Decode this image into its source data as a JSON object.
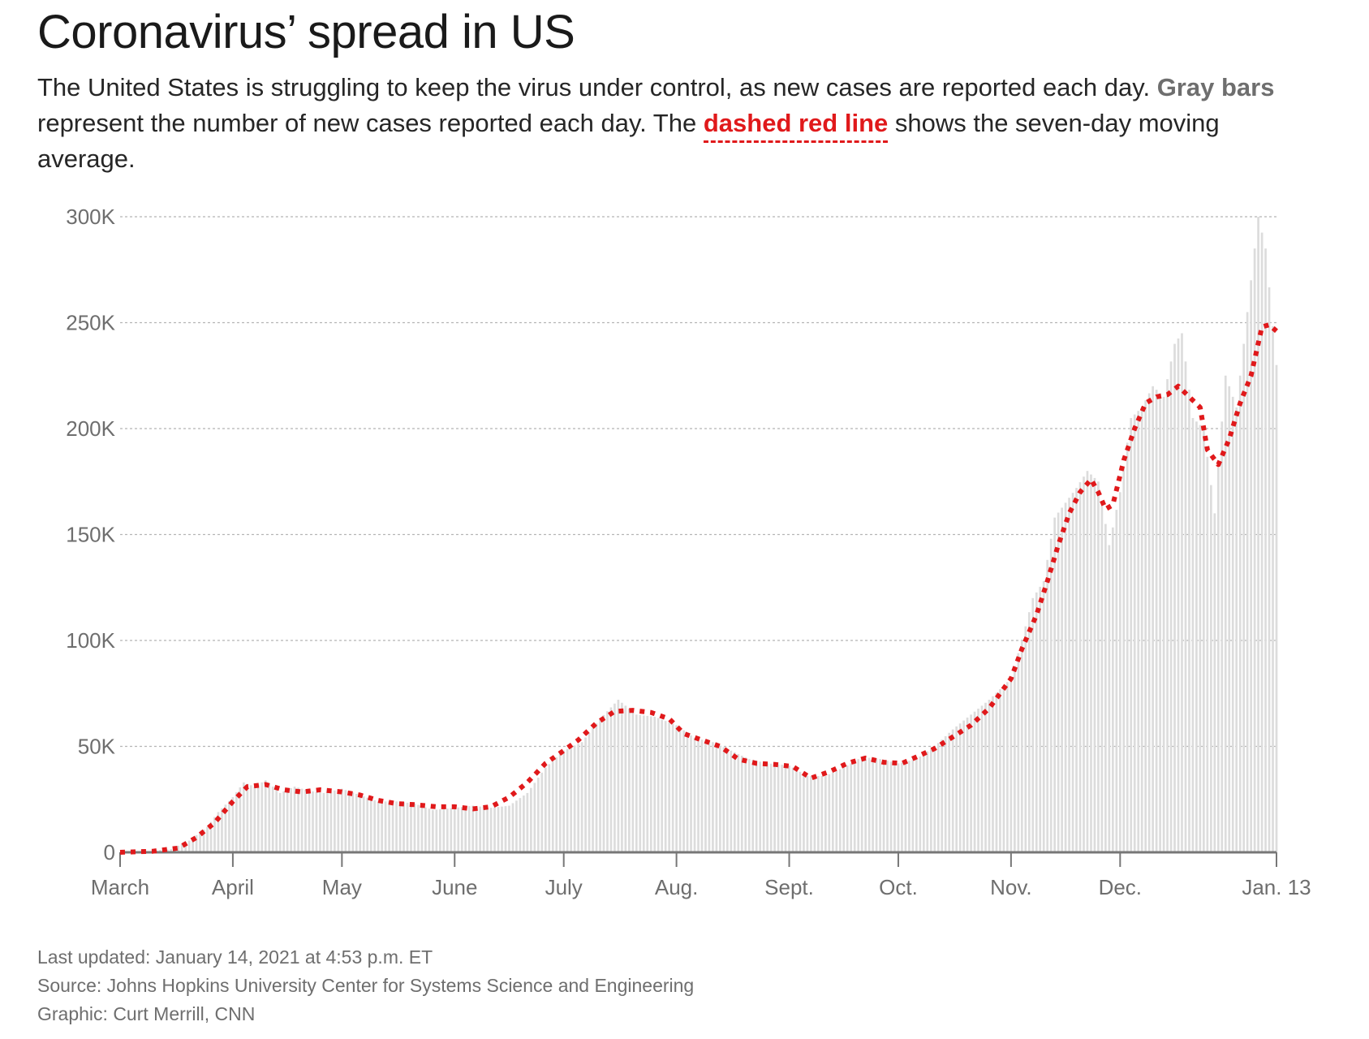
{
  "header": {
    "title": "Coronavirus’ spread in US",
    "desc_part1": "The United States is struggling to keep the virus under control, as new cases are reported each day. ",
    "desc_gray": "Gray bars",
    "desc_part2": " represent the number of new cases reported each day. The ",
    "desc_red": "dashed red line",
    "desc_part3": " shows the seven-day moving average."
  },
  "footer": {
    "updated": "Last updated: January 14, 2021 at 4:53 p.m. ET",
    "source": "Source: Johns Hopkins University Center for Systems Science and Engineering",
    "graphic": "Graphic: Curt Merrill, CNN"
  },
  "colors": {
    "bars": "#dcdcdc",
    "average_line": "#e0191b",
    "grid": "#b5b5b5",
    "axis": "#777777"
  },
  "chart_data": {
    "type": "bar",
    "title": "",
    "xlabel": "",
    "ylabel": "",
    "ylim": [
      0,
      300000
    ],
    "grid": true,
    "y_ticks": [
      {
        "value": 0,
        "label": "0"
      },
      {
        "value": 50000,
        "label": "50K"
      },
      {
        "value": 100000,
        "label": "100K"
      },
      {
        "value": 150000,
        "label": "150K"
      },
      {
        "value": 200000,
        "label": "200K"
      },
      {
        "value": 250000,
        "label": "250K"
      },
      {
        "value": 300000,
        "label": "300K"
      }
    ],
    "x_ticks": [
      {
        "date": "2020-03-01",
        "label": "March"
      },
      {
        "date": "2020-04-01",
        "label": "April"
      },
      {
        "date": "2020-05-01",
        "label": "May"
      },
      {
        "date": "2020-06-01",
        "label": "June"
      },
      {
        "date": "2020-07-01",
        "label": "July"
      },
      {
        "date": "2020-08-01",
        "label": "Aug."
      },
      {
        "date": "2020-09-01",
        "label": "Sept."
      },
      {
        "date": "2020-10-01",
        "label": "Oct."
      },
      {
        "date": "2020-11-01",
        "label": "Nov."
      },
      {
        "date": "2020-12-01",
        "label": "Dec."
      },
      {
        "date": "2021-01-13",
        "label": "Jan. 13"
      }
    ],
    "series": [
      {
        "kind": "bars",
        "points": [
          [
            "2020-03-01",
            0
          ],
          [
            "2020-03-08",
            400
          ],
          [
            "2020-03-15",
            1500
          ],
          [
            "2020-03-20",
            5500
          ],
          [
            "2020-03-25",
            12000
          ],
          [
            "2020-03-28",
            19000
          ],
          [
            "2020-04-01",
            26000
          ],
          [
            "2020-04-04",
            33000
          ],
          [
            "2020-04-07",
            31000
          ],
          [
            "2020-04-10",
            34000
          ],
          [
            "2020-04-14",
            28000
          ],
          [
            "2020-04-18",
            31000
          ],
          [
            "2020-04-22",
            29000
          ],
          [
            "2020-04-26",
            28000
          ],
          [
            "2020-05-01",
            30000
          ],
          [
            "2020-05-06",
            27000
          ],
          [
            "2020-05-11",
            24000
          ],
          [
            "2020-05-16",
            24000
          ],
          [
            "2020-05-21",
            23000
          ],
          [
            "2020-05-26",
            20000
          ],
          [
            "2020-06-01",
            21000
          ],
          [
            "2020-06-06",
            22000
          ],
          [
            "2020-06-11",
            21000
          ],
          [
            "2020-06-16",
            22000
          ],
          [
            "2020-06-21",
            28000
          ],
          [
            "2020-06-26",
            40000
          ],
          [
            "2020-07-01",
            48000
          ],
          [
            "2020-07-06",
            52000
          ],
          [
            "2020-07-11",
            63000
          ],
          [
            "2020-07-16",
            72000
          ],
          [
            "2020-07-21",
            65000
          ],
          [
            "2020-07-26",
            64000
          ],
          [
            "2020-08-01",
            60000
          ],
          [
            "2020-08-06",
            54000
          ],
          [
            "2020-08-11",
            52000
          ],
          [
            "2020-08-16",
            48000
          ],
          [
            "2020-08-21",
            44000
          ],
          [
            "2020-08-26",
            42000
          ],
          [
            "2020-09-01",
            41000
          ],
          [
            "2020-09-06",
            36000
          ],
          [
            "2020-09-11",
            36000
          ],
          [
            "2020-09-16",
            40000
          ],
          [
            "2020-09-21",
            45000
          ],
          [
            "2020-09-26",
            44000
          ],
          [
            "2020-10-01",
            42000
          ],
          [
            "2020-10-06",
            44000
          ],
          [
            "2020-10-11",
            50000
          ],
          [
            "2020-10-16",
            58000
          ],
          [
            "2020-10-21",
            65000
          ],
          [
            "2020-10-26",
            72000
          ],
          [
            "2020-11-01",
            82000
          ],
          [
            "2020-11-04",
            100000
          ],
          [
            "2020-11-07",
            120000
          ],
          [
            "2020-11-10",
            128000
          ],
          [
            "2020-11-13",
            158000
          ],
          [
            "2020-11-16",
            165000
          ],
          [
            "2020-11-19",
            172000
          ],
          [
            "2020-11-22",
            180000
          ],
          [
            "2020-11-25",
            175000
          ],
          [
            "2020-11-28",
            145000
          ],
          [
            "2020-12-01",
            170000
          ],
          [
            "2020-12-04",
            205000
          ],
          [
            "2020-12-07",
            210000
          ],
          [
            "2020-12-10",
            220000
          ],
          [
            "2020-12-13",
            215000
          ],
          [
            "2020-12-16",
            240000
          ],
          [
            "2020-12-18",
            245000
          ],
          [
            "2020-12-21",
            205000
          ],
          [
            "2020-12-24",
            200000
          ],
          [
            "2020-12-27",
            160000
          ],
          [
            "2020-12-30",
            225000
          ],
          [
            "2021-01-02",
            210000
          ],
          [
            "2021-01-05",
            255000
          ],
          [
            "2021-01-08",
            300000
          ],
          [
            "2021-01-10",
            285000
          ],
          [
            "2021-01-13",
            230000
          ]
        ]
      },
      {
        "kind": "line",
        "points": [
          [
            "2020-03-01",
            0
          ],
          [
            "2020-03-10",
            500
          ],
          [
            "2020-03-17",
            2000
          ],
          [
            "2020-03-22",
            7000
          ],
          [
            "2020-03-27",
            14000
          ],
          [
            "2020-04-01",
            24000
          ],
          [
            "2020-04-05",
            31000
          ],
          [
            "2020-04-10",
            32000
          ],
          [
            "2020-04-15",
            29500
          ],
          [
            "2020-04-20",
            28500
          ],
          [
            "2020-04-25",
            29500
          ],
          [
            "2020-05-01",
            28500
          ],
          [
            "2020-05-06",
            27000
          ],
          [
            "2020-05-11",
            24500
          ],
          [
            "2020-05-16",
            23000
          ],
          [
            "2020-05-21",
            22500
          ],
          [
            "2020-05-27",
            21500
          ],
          [
            "2020-06-01",
            21500
          ],
          [
            "2020-06-06",
            20500
          ],
          [
            "2020-06-11",
            21500
          ],
          [
            "2020-06-16",
            26000
          ],
          [
            "2020-06-21",
            33000
          ],
          [
            "2020-06-26",
            42000
          ],
          [
            "2020-07-01",
            48000
          ],
          [
            "2020-07-05",
            53000
          ],
          [
            "2020-07-10",
            61000
          ],
          [
            "2020-07-15",
            66500
          ],
          [
            "2020-07-20",
            67000
          ],
          [
            "2020-07-25",
            66000
          ],
          [
            "2020-07-30",
            63000
          ],
          [
            "2020-08-03",
            56000
          ],
          [
            "2020-08-08",
            53000
          ],
          [
            "2020-08-13",
            50000
          ],
          [
            "2020-08-18",
            44000
          ],
          [
            "2020-08-23",
            42000
          ],
          [
            "2020-08-28",
            41500
          ],
          [
            "2020-09-02",
            40500
          ],
          [
            "2020-09-07",
            35000
          ],
          [
            "2020-09-12",
            38000
          ],
          [
            "2020-09-17",
            42000
          ],
          [
            "2020-09-22",
            44500
          ],
          [
            "2020-09-27",
            42500
          ],
          [
            "2020-10-02",
            42000
          ],
          [
            "2020-10-06",
            45000
          ],
          [
            "2020-10-11",
            49000
          ],
          [
            "2020-10-16",
            54500
          ],
          [
            "2020-10-21",
            60000
          ],
          [
            "2020-10-26",
            68000
          ],
          [
            "2020-11-01",
            82000
          ],
          [
            "2020-11-04",
            96000
          ],
          [
            "2020-11-08",
            112000
          ],
          [
            "2020-11-11",
            128000
          ],
          [
            "2020-11-14",
            145000
          ],
          [
            "2020-11-17",
            160000
          ],
          [
            "2020-11-20",
            170000
          ],
          [
            "2020-11-23",
            176000
          ],
          [
            "2020-11-25",
            170000
          ],
          [
            "2020-11-27",
            162000
          ],
          [
            "2020-11-29",
            164000
          ],
          [
            "2020-12-02",
            185000
          ],
          [
            "2020-12-05",
            200000
          ],
          [
            "2020-12-08",
            212000
          ],
          [
            "2020-12-11",
            215000
          ],
          [
            "2020-12-14",
            216000
          ],
          [
            "2020-12-17",
            220000
          ],
          [
            "2020-12-20",
            215000
          ],
          [
            "2020-12-23",
            210000
          ],
          [
            "2020-12-25",
            190000
          ],
          [
            "2020-12-28",
            183000
          ],
          [
            "2020-12-31",
            195000
          ],
          [
            "2021-01-03",
            212000
          ],
          [
            "2021-01-06",
            225000
          ],
          [
            "2021-01-09",
            248000
          ],
          [
            "2021-01-11",
            249000
          ],
          [
            "2021-01-13",
            246000
          ]
        ]
      }
    ]
  }
}
